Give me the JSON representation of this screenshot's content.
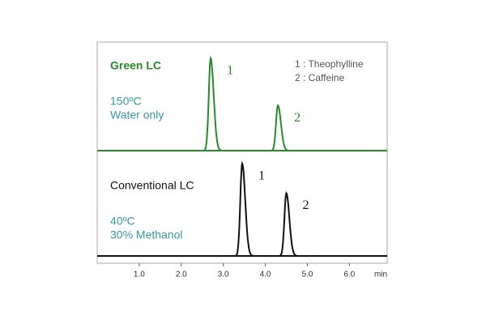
{
  "chart_data": {
    "type": "chromatogram",
    "x_label": "min",
    "xlim": [
      0,
      6.9
    ],
    "xticks": [
      {
        "value": 1,
        "label": "1.0"
      },
      {
        "value": 2,
        "label": "2.0"
      },
      {
        "value": 3,
        "label": "3.0"
      },
      {
        "value": 4,
        "label": "4.0"
      },
      {
        "value": 5,
        "label": "5.0"
      },
      {
        "value": 6,
        "label": "6.0"
      }
    ],
    "legend": [
      "1 : Theophylline",
      "2 : Caffeine"
    ],
    "series": [
      {
        "name": "Green LC",
        "color": "#2a8a2a",
        "conditions": [
          "150ºC",
          "Water only"
        ],
        "x": [
          2.7,
          4.3
        ],
        "values": [
          1.0,
          0.49
        ],
        "peak_labels": [
          "1",
          "2"
        ]
      },
      {
        "name": "Conventional LC",
        "color": "#111111",
        "conditions": [
          "40ºC",
          "30% Methanol"
        ],
        "x": [
          3.45,
          4.5
        ],
        "values": [
          1.0,
          0.68
        ],
        "peak_labels": [
          "1",
          "2"
        ]
      }
    ]
  }
}
